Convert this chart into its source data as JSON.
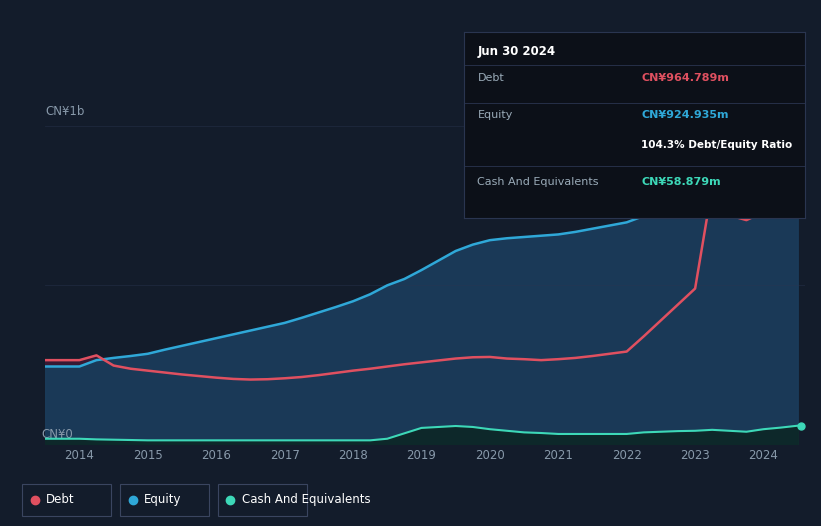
{
  "bg_color": "#131c2b",
  "plot_bg_color": "#131c2b",
  "grid_color": "#2a3550",
  "label_color": "#8899aa",
  "debt_color": "#e05060",
  "equity_color": "#2fa8d8",
  "cash_color": "#3dd8b8",
  "fill_equity_color": "#1a4060",
  "fill_debt_over_equity_color": "#402040",
  "fill_cash_color": "#0f3030",
  "ylabel_top": "CN¥1b",
  "ylabel_bottom": "CN¥0",
  "years": [
    2013.5,
    2014.0,
    2014.25,
    2014.5,
    2014.75,
    2015.0,
    2015.25,
    2015.5,
    2015.75,
    2016.0,
    2016.25,
    2016.5,
    2016.75,
    2017.0,
    2017.25,
    2017.5,
    2017.75,
    2018.0,
    2018.25,
    2018.5,
    2018.75,
    2019.0,
    2019.25,
    2019.5,
    2019.75,
    2020.0,
    2020.25,
    2020.5,
    2020.75,
    2021.0,
    2021.25,
    2021.5,
    2021.75,
    2022.0,
    2022.25,
    2022.5,
    2022.75,
    2023.0,
    2023.25,
    2023.5,
    2023.75,
    2024.0,
    2024.25,
    2024.5
  ],
  "debt": [
    0.265,
    0.265,
    0.28,
    0.248,
    0.238,
    0.232,
    0.226,
    0.22,
    0.215,
    0.21,
    0.206,
    0.204,
    0.205,
    0.208,
    0.212,
    0.218,
    0.225,
    0.232,
    0.238,
    0.245,
    0.252,
    0.258,
    0.264,
    0.27,
    0.274,
    0.275,
    0.27,
    0.268,
    0.265,
    0.268,
    0.272,
    0.278,
    0.285,
    0.292,
    0.34,
    0.39,
    0.44,
    0.49,
    0.81,
    0.72,
    0.705,
    0.73,
    0.89,
    0.965
  ],
  "equity": [
    0.245,
    0.245,
    0.265,
    0.272,
    0.278,
    0.285,
    0.298,
    0.31,
    0.322,
    0.334,
    0.346,
    0.358,
    0.37,
    0.382,
    0.398,
    0.415,
    0.432,
    0.45,
    0.472,
    0.5,
    0.52,
    0.548,
    0.578,
    0.608,
    0.628,
    0.642,
    0.648,
    0.652,
    0.656,
    0.66,
    0.668,
    0.678,
    0.688,
    0.698,
    0.718,
    0.738,
    0.758,
    0.772,
    0.786,
    0.796,
    0.806,
    0.816,
    0.865,
    0.925
  ],
  "cash": [
    0.018,
    0.018,
    0.016,
    0.015,
    0.014,
    0.013,
    0.013,
    0.013,
    0.013,
    0.013,
    0.013,
    0.013,
    0.013,
    0.013,
    0.013,
    0.013,
    0.013,
    0.013,
    0.013,
    0.018,
    0.035,
    0.052,
    0.055,
    0.058,
    0.055,
    0.048,
    0.043,
    0.038,
    0.036,
    0.033,
    0.033,
    0.033,
    0.033,
    0.033,
    0.038,
    0.04,
    0.042,
    0.043,
    0.046,
    0.043,
    0.04,
    0.048,
    0.053,
    0.059
  ],
  "xtick_years": [
    2014,
    2015,
    2016,
    2017,
    2018,
    2019,
    2020,
    2021,
    2022,
    2023,
    2024
  ],
  "xlim": [
    2013.5,
    2024.6
  ],
  "ylim": [
    0,
    1.0
  ],
  "tooltip_date": "Jun 30 2024",
  "tooltip_debt_label": "Debt",
  "tooltip_debt_value": "CN¥964.789m",
  "tooltip_equity_label": "Equity",
  "tooltip_equity_value": "CN¥924.935m",
  "tooltip_ratio": "104.3% Debt/Equity Ratio",
  "tooltip_cash_label": "Cash And Equivalents",
  "tooltip_cash_value": "CN¥58.879m",
  "legend_items": [
    "Debt",
    "Equity",
    "Cash And Equivalents"
  ]
}
